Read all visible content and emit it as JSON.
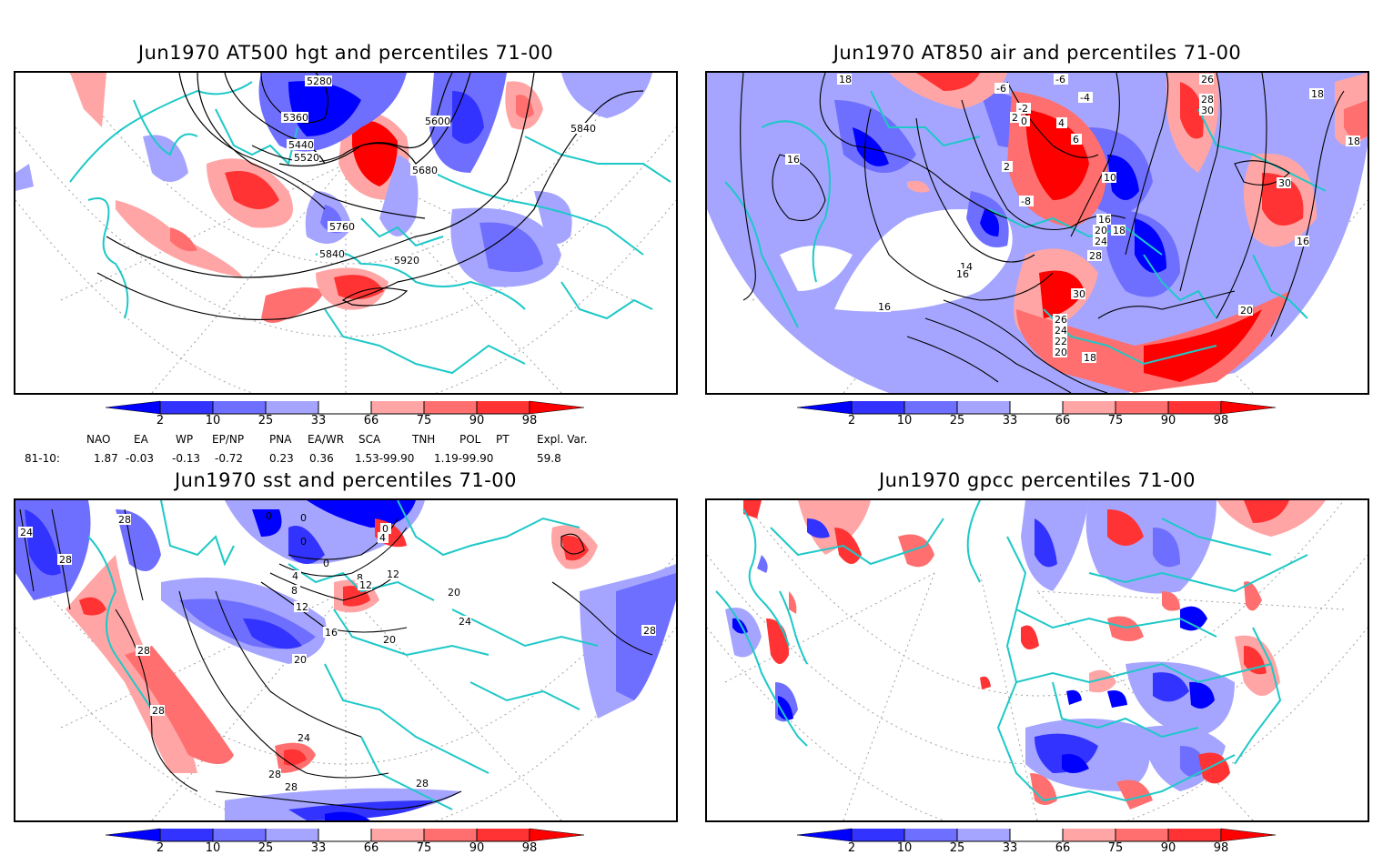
{
  "panels": [
    {
      "title": "Jun1970 AT500 hgt and percentiles 71-00",
      "contour_labels": [
        "5280",
        "5360",
        "5440",
        "5520",
        "5600",
        "5680",
        "5760",
        "5840",
        "5920",
        "5840"
      ]
    },
    {
      "title": "Jun1970 AT850 air and percentiles 71-00",
      "contour_labels": [
        "18",
        "-6",
        "-4",
        "-6",
        "2",
        "0",
        "-2",
        "4",
        "6",
        "2",
        "10",
        "-8",
        "16",
        "18",
        "16",
        "14",
        "16",
        "20",
        "24",
        "28",
        "30",
        "26",
        "24",
        "22",
        "20",
        "18",
        "26",
        "28",
        "30",
        "30",
        "18",
        "16",
        "20",
        "18",
        "16"
      ]
    },
    {
      "title": "Jun1970 sst and percentiles 71-00",
      "contour_labels": [
        "24",
        "28",
        "28",
        "0",
        "0",
        "0",
        "0",
        "4",
        "0",
        "4",
        "8",
        "12",
        "8",
        "12",
        "12",
        "16",
        "20",
        "20",
        "20",
        "24",
        "28",
        "28",
        "28",
        "28",
        "28",
        "24",
        "28"
      ]
    },
    {
      "title": "Jun1970 gpcc percentiles 71-00",
      "contour_labels": []
    }
  ],
  "colorbar": {
    "ticks": [
      "2",
      "10",
      "25",
      "33",
      "66",
      "75",
      "90",
      "98"
    ],
    "colors": [
      "#0000ff",
      "#3333ff",
      "#6f6fff",
      "#a5a5ff",
      "#ffffff",
      "#ffa5a5",
      "#ff6f6f",
      "#ff3333",
      "#ff0000"
    ]
  },
  "indices": {
    "row_label": "81-10:",
    "headers": [
      "NAO",
      "EA",
      "WP",
      "EP/NP",
      "PNA",
      "EA/WR",
      "SCA",
      "TNH",
      "POL",
      "PT",
      "Expl. Var."
    ],
    "values": [
      "1.87",
      "-0.03",
      "-0.13",
      "-0.72",
      "0.23",
      "0.36",
      "1.53-99.90",
      "1.19-99.90",
      "59.8"
    ]
  },
  "colors": {
    "coast": "#1ec8c8",
    "grid": "#a0a0a0"
  }
}
